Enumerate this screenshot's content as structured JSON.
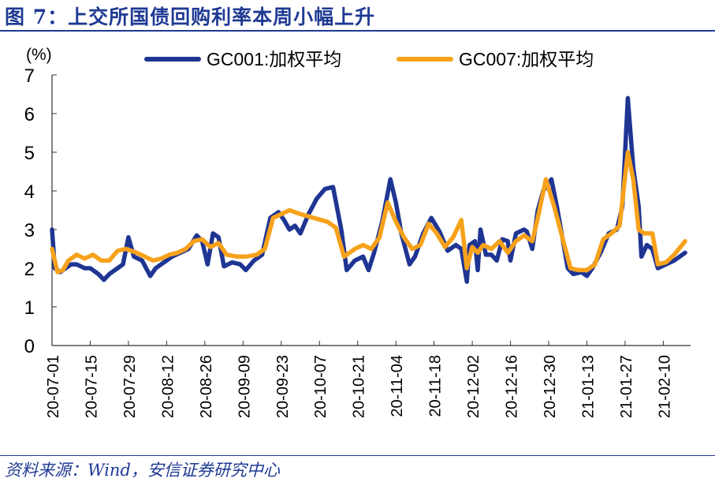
{
  "header": {
    "title": "图 7：上交所国债回购利率本周小幅上升"
  },
  "footer": {
    "source": "资料来源：Wind，安信证券研究中心"
  },
  "colors": {
    "title": "#1f3a93",
    "gc001": "#1f3593",
    "gc007": "#f7a21b",
    "axis": "#333333",
    "text": "#000000"
  },
  "chart_data": {
    "type": "line",
    "title": "图 7：上交所国债回购利率本周小幅上升",
    "ylabel": "(%)",
    "xlabel": "",
    "ylim": [
      0,
      7
    ],
    "yticks": [
      0,
      1,
      2,
      3,
      4,
      5,
      6,
      7
    ],
    "grid": false,
    "legend_position": "top",
    "xlim": [
      "2020-07-01",
      "2021-02-20"
    ],
    "xticks": [
      "20-07-01",
      "20-07-15",
      "20-07-29",
      "20-08-12",
      "20-08-26",
      "20-09-09",
      "20-09-23",
      "20-10-07",
      "20-10-21",
      "20-11-04",
      "20-11-18",
      "20-12-02",
      "20-12-16",
      "20-12-30",
      "21-01-13",
      "21-01-27",
      "21-02-10"
    ],
    "series": [
      {
        "name": "GC001:加权平均",
        "color": "#1f3593",
        "points": [
          [
            "2020-07-01",
            3.0
          ],
          [
            "2020-07-02",
            2.0
          ],
          [
            "2020-07-04",
            1.9
          ],
          [
            "2020-07-06",
            2.0
          ],
          [
            "2020-07-08",
            2.1
          ],
          [
            "2020-07-10",
            2.1
          ],
          [
            "2020-07-13",
            2.0
          ],
          [
            "2020-07-15",
            2.0
          ],
          [
            "2020-07-18",
            1.85
          ],
          [
            "2020-07-20",
            1.7
          ],
          [
            "2020-07-22",
            1.85
          ],
          [
            "2020-07-25",
            2.0
          ],
          [
            "2020-07-27",
            2.1
          ],
          [
            "2020-07-29",
            2.8
          ],
          [
            "2020-07-31",
            2.3
          ],
          [
            "2020-08-03",
            2.2
          ],
          [
            "2020-08-06",
            1.8
          ],
          [
            "2020-08-08",
            2.0
          ],
          [
            "2020-08-11",
            2.15
          ],
          [
            "2020-08-14",
            2.3
          ],
          [
            "2020-08-17",
            2.4
          ],
          [
            "2020-08-20",
            2.5
          ],
          [
            "2020-08-23",
            2.85
          ],
          [
            "2020-08-25",
            2.7
          ],
          [
            "2020-08-27",
            2.1
          ],
          [
            "2020-08-29",
            2.9
          ],
          [
            "2020-08-31",
            2.8
          ],
          [
            "2020-09-02",
            2.05
          ],
          [
            "2020-09-05",
            2.15
          ],
          [
            "2020-09-08",
            2.1
          ],
          [
            "2020-09-10",
            1.95
          ],
          [
            "2020-09-13",
            2.2
          ],
          [
            "2020-09-16",
            2.35
          ],
          [
            "2020-09-19",
            3.3
          ],
          [
            "2020-09-22",
            3.45
          ],
          [
            "2020-09-24",
            3.25
          ],
          [
            "2020-09-26",
            3.0
          ],
          [
            "2020-09-28",
            3.1
          ],
          [
            "2020-09-30",
            2.9
          ],
          [
            "2020-10-03",
            3.4
          ],
          [
            "2020-10-06",
            3.8
          ],
          [
            "2020-10-09",
            4.05
          ],
          [
            "2020-10-12",
            4.1
          ],
          [
            "2020-10-15",
            3.0
          ],
          [
            "2020-10-17",
            1.95
          ],
          [
            "2020-10-20",
            2.2
          ],
          [
            "2020-10-23",
            2.3
          ],
          [
            "2020-10-25",
            1.95
          ],
          [
            "2020-10-27",
            2.4
          ],
          [
            "2020-10-30",
            3.2
          ],
          [
            "2020-11-02",
            4.3
          ],
          [
            "2020-11-04",
            3.7
          ],
          [
            "2020-11-06",
            2.9
          ],
          [
            "2020-11-09",
            2.1
          ],
          [
            "2020-11-11",
            2.3
          ],
          [
            "2020-11-14",
            2.9
          ],
          [
            "2020-11-17",
            3.3
          ],
          [
            "2020-11-20",
            2.95
          ],
          [
            "2020-11-23",
            2.45
          ],
          [
            "2020-11-26",
            2.6
          ],
          [
            "2020-11-28",
            2.5
          ],
          [
            "2020-11-30",
            1.65
          ],
          [
            "2020-12-01",
            2.6
          ],
          [
            "2020-12-03",
            2.7
          ],
          [
            "2020-12-04",
            1.95
          ],
          [
            "2020-12-05",
            3.0
          ],
          [
            "2020-12-07",
            2.35
          ],
          [
            "2020-12-09",
            2.35
          ],
          [
            "2020-12-11",
            2.2
          ],
          [
            "2020-12-13",
            2.75
          ],
          [
            "2020-12-15",
            2.7
          ],
          [
            "2020-12-16",
            2.2
          ],
          [
            "2020-12-18",
            2.9
          ],
          [
            "2020-12-21",
            3.0
          ],
          [
            "2020-12-22",
            2.95
          ],
          [
            "2020-12-24",
            2.5
          ],
          [
            "2020-12-26",
            3.5
          ],
          [
            "2020-12-28",
            4.0
          ],
          [
            "2020-12-31",
            4.3
          ],
          [
            "2021-01-02",
            3.6
          ],
          [
            "2021-01-04",
            2.8
          ],
          [
            "2021-01-06",
            2.0
          ],
          [
            "2021-01-08",
            1.85
          ],
          [
            "2021-01-11",
            1.9
          ],
          [
            "2021-01-13",
            1.8
          ],
          [
            "2021-01-15",
            2.0
          ],
          [
            "2021-01-18",
            2.4
          ],
          [
            "2021-01-21",
            2.9
          ],
          [
            "2021-01-24",
            3.0
          ],
          [
            "2021-01-26",
            3.6
          ],
          [
            "2021-01-28",
            6.4
          ],
          [
            "2021-01-30",
            4.6
          ],
          [
            "2021-02-01",
            3.6
          ],
          [
            "2021-02-02",
            2.3
          ],
          [
            "2021-02-04",
            2.6
          ],
          [
            "2021-02-06",
            2.5
          ],
          [
            "2021-02-08",
            2.0
          ],
          [
            "2021-02-11",
            2.1
          ],
          [
            "2021-02-14",
            2.2
          ],
          [
            "2021-02-18",
            2.4
          ]
        ]
      },
      {
        "name": "GC007:加权平均",
        "color": "#f7a21b",
        "points": [
          [
            "2020-07-01",
            2.5
          ],
          [
            "2020-07-03",
            1.9
          ],
          [
            "2020-07-05",
            1.95
          ],
          [
            "2020-07-07",
            2.2
          ],
          [
            "2020-07-10",
            2.35
          ],
          [
            "2020-07-13",
            2.25
          ],
          [
            "2020-07-16",
            2.35
          ],
          [
            "2020-07-19",
            2.2
          ],
          [
            "2020-07-22",
            2.2
          ],
          [
            "2020-07-25",
            2.45
          ],
          [
            "2020-07-28",
            2.5
          ],
          [
            "2020-08-01",
            2.4
          ],
          [
            "2020-08-04",
            2.3
          ],
          [
            "2020-08-07",
            2.2
          ],
          [
            "2020-08-10",
            2.25
          ],
          [
            "2020-08-13",
            2.35
          ],
          [
            "2020-08-16",
            2.4
          ],
          [
            "2020-08-19",
            2.5
          ],
          [
            "2020-08-22",
            2.7
          ],
          [
            "2020-08-25",
            2.75
          ],
          [
            "2020-08-28",
            2.55
          ],
          [
            "2020-08-31",
            2.65
          ],
          [
            "2020-09-03",
            2.35
          ],
          [
            "2020-09-07",
            2.3
          ],
          [
            "2020-09-10",
            2.3
          ],
          [
            "2020-09-14",
            2.35
          ],
          [
            "2020-09-17",
            2.5
          ],
          [
            "2020-09-20",
            3.3
          ],
          [
            "2020-09-23",
            3.4
          ],
          [
            "2020-09-26",
            3.5
          ],
          [
            "2020-09-30",
            3.4
          ],
          [
            "2020-10-05",
            3.3
          ],
          [
            "2020-10-10",
            3.2
          ],
          [
            "2020-10-13",
            3.05
          ],
          [
            "2020-10-16",
            2.3
          ],
          [
            "2020-10-20",
            2.5
          ],
          [
            "2020-10-23",
            2.6
          ],
          [
            "2020-10-26",
            2.5
          ],
          [
            "2020-10-29",
            2.8
          ],
          [
            "2020-11-01",
            3.7
          ],
          [
            "2020-11-04",
            3.2
          ],
          [
            "2020-11-07",
            2.8
          ],
          [
            "2020-11-10",
            2.5
          ],
          [
            "2020-11-13",
            2.6
          ],
          [
            "2020-11-16",
            3.15
          ],
          [
            "2020-11-19",
            2.9
          ],
          [
            "2020-11-22",
            2.55
          ],
          [
            "2020-11-25",
            2.8
          ],
          [
            "2020-11-28",
            3.25
          ],
          [
            "2020-11-30",
            2.0
          ],
          [
            "2020-12-02",
            2.55
          ],
          [
            "2020-12-04",
            2.4
          ],
          [
            "2020-12-06",
            2.6
          ],
          [
            "2020-12-09",
            2.5
          ],
          [
            "2020-12-12",
            2.7
          ],
          [
            "2020-12-15",
            2.4
          ],
          [
            "2020-12-18",
            2.7
          ],
          [
            "2020-12-21",
            2.85
          ],
          [
            "2020-12-24",
            2.7
          ],
          [
            "2020-12-26",
            3.3
          ],
          [
            "2020-12-29",
            4.3
          ],
          [
            "2021-01-01",
            3.6
          ],
          [
            "2021-01-04",
            2.8
          ],
          [
            "2021-01-07",
            2.0
          ],
          [
            "2021-01-10",
            1.95
          ],
          [
            "2021-01-13",
            1.95
          ],
          [
            "2021-01-16",
            2.1
          ],
          [
            "2021-01-19",
            2.75
          ],
          [
            "2021-01-22",
            2.9
          ],
          [
            "2021-01-25",
            3.1
          ],
          [
            "2021-01-28",
            5.0
          ],
          [
            "2021-01-30",
            4.3
          ],
          [
            "2021-02-01",
            3.0
          ],
          [
            "2021-02-03",
            2.9
          ],
          [
            "2021-02-06",
            2.9
          ],
          [
            "2021-02-08",
            2.1
          ],
          [
            "2021-02-11",
            2.15
          ],
          [
            "2021-02-14",
            2.35
          ],
          [
            "2021-02-18",
            2.7
          ]
        ]
      }
    ]
  }
}
